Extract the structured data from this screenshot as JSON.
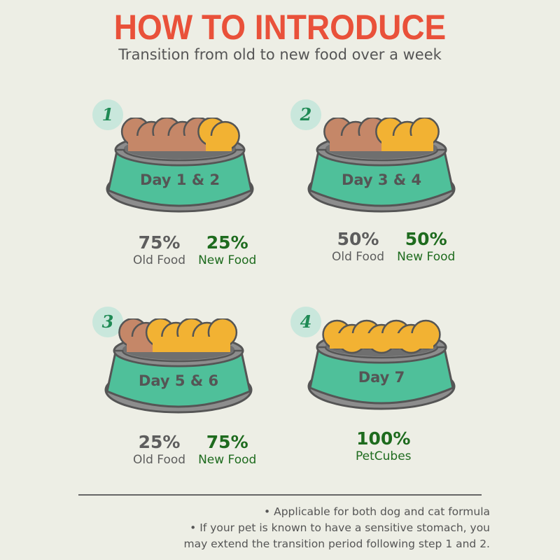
{
  "title": "HOW TO INTRODUCE",
  "subtitle": "Transition from old to new food over a week",
  "colors": {
    "title": "#e9513a",
    "bowl": "#4fc09a",
    "bowl_rim": "#8d8d8d",
    "old_food": "#c58768",
    "new_food": "#f2b233",
    "new_text": "#1e6b1e"
  },
  "steps": [
    {
      "number": "1",
      "day": "Day 1 & 2",
      "new_share": 0.25,
      "stats": [
        {
          "pct": "75%",
          "label": "Old Food",
          "kind": "old"
        },
        {
          "pct": "25%",
          "label": "New Food",
          "kind": "new"
        }
      ]
    },
    {
      "number": "2",
      "day": "Day 3 & 4",
      "new_share": 0.5,
      "stats": [
        {
          "pct": "50%",
          "label": "Old Food",
          "kind": "old"
        },
        {
          "pct": "50%",
          "label": "New Food",
          "kind": "new"
        }
      ]
    },
    {
      "number": "3",
      "day": "Day 5 & 6",
      "new_share": 0.75,
      "stats": [
        {
          "pct": "25%",
          "label": "Old Food",
          "kind": "old"
        },
        {
          "pct": "75%",
          "label": "New Food",
          "kind": "new"
        }
      ]
    },
    {
      "number": "4",
      "day": "Day 7",
      "new_share": 1,
      "stats": [
        {
          "pct": "100%",
          "label": "PetCubes",
          "kind": "new"
        }
      ]
    }
  ],
  "notes": [
    "• Applicable for both dog and cat formula",
    "• If your pet is known to have a sensitive stomach, you",
    "may extend the transition period following step 1 and 2."
  ]
}
